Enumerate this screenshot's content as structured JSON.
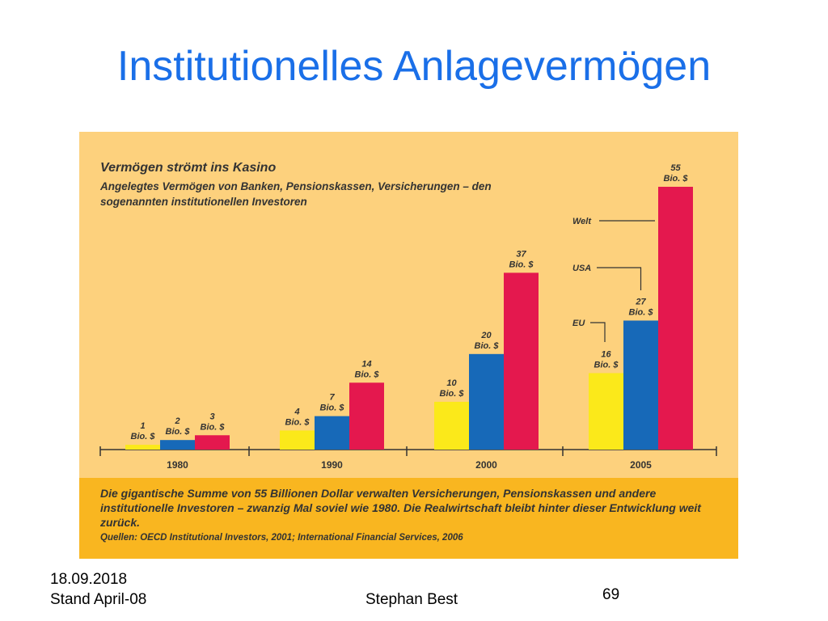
{
  "slide": {
    "title": "Institutionelles Anlagevermögen",
    "date": "18.09.2018",
    "stand": "Stand April-08",
    "author": "Stephan Best",
    "page_number": "69"
  },
  "colors": {
    "eu": "#fbe91a",
    "usa": "#1769b8",
    "welt": "#e4184e",
    "panel_bg": "#fdd17d",
    "footer_bg": "#f9b620",
    "title": "#1a6fe8"
  },
  "chart_data": {
    "type": "bar",
    "title": "Vermögen strömt ins Kasino",
    "subtitle": "Angelegtes Vermögen von Banken, Pensionskassen, Versicherungen – den sogenannten institutionellen Investoren",
    "categories": [
      "1980",
      "1990",
      "2000",
      "2005"
    ],
    "series": [
      {
        "name": "EU",
        "values": [
          1,
          4,
          10,
          16
        ],
        "labels": [
          "1 Bio. $",
          "4 Bio. $",
          "10 Bio. $",
          "16 Bio. $"
        ]
      },
      {
        "name": "USA",
        "values": [
          2,
          7,
          20,
          27
        ],
        "labels": [
          "2 Bio. $",
          "7 Bio. $",
          "20 Bio. $",
          "27 Bio. $"
        ]
      },
      {
        "name": "Welt",
        "values": [
          3,
          14,
          37,
          55
        ],
        "labels": [
          "3 Bio. $",
          "14 Bio. $",
          "37 Bio. $",
          "55 Bio. $"
        ]
      }
    ],
    "unit": "Bio. $",
    "ylim": [
      0,
      55
    ],
    "grid": false,
    "legend": "callouts next to 2005 bars",
    "footnote": "Die gigantische Summe von 55 Billionen Dollar verwalten Versicherungen, Pensionskassen und andere institutionelle Investoren – zwanzig Mal soviel wie 1980. Die Realwirtschaft bleibt hinter dieser Entwicklung weit zurück.",
    "source": "Quellen: OECD Institutional Investors, 2001; International Financial Services, 2006"
  }
}
